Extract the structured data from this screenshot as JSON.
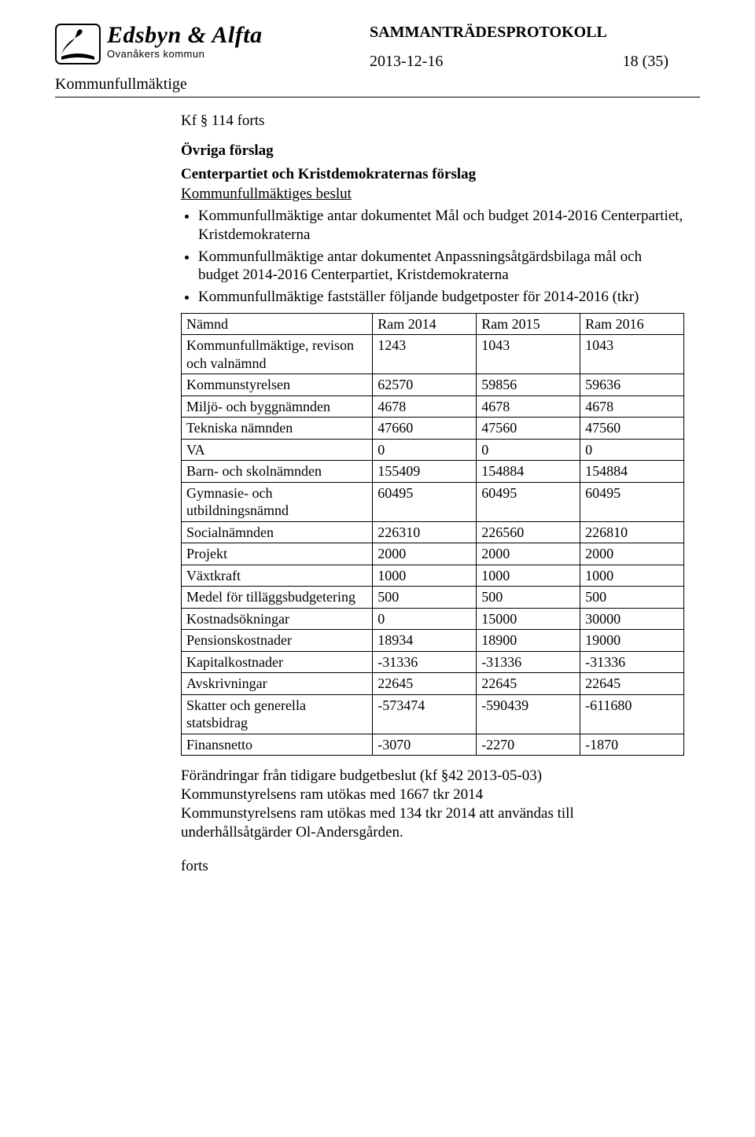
{
  "header": {
    "logo_main": "Edsbyn & Alfta",
    "logo_sub": "Ovanåkers kommun",
    "doc_title": "SAMMANTRÄDESPROTOKOLL",
    "date": "2013-12-16",
    "page_label": "18 (35)"
  },
  "kf_label": "Kommunfullmäktige",
  "content": {
    "kf_forts": "Kf § 114 forts",
    "h1": "Övriga förslag",
    "h2": "Centerpartiet och Kristdemokraternas förslag",
    "sub": "Kommunfullmäktiges beslut",
    "bullets": [
      "Kommunfullmäktige antar dokumentet Mål och budget 2014-2016 Centerpartiet, Kristdemokraterna",
      "Kommunfullmäktige antar dokumentet Anpassningsåtgärdsbilaga mål och budget 2014-2016 Centerpartiet, Kristdemokraterna",
      "Kommunfullmäktige fastställer följande budgetposter för 2014-2016 (tkr)"
    ],
    "footer_lines": [
      "Förändringar från tidigare budgetbeslut (kf §42 2013-05-03)",
      "Kommunstyrelsens ram utökas med 1667 tkr 2014",
      "Kommunstyrelsens ram utökas med 134 tkr 2014 att användas till underhållsåtgärder Ol-Andersgården."
    ],
    "forts": "forts"
  },
  "table": {
    "columns": [
      "Nämnd",
      "Ram 2014",
      "Ram 2015",
      "Ram 2016"
    ],
    "col_widths": [
      "38%",
      "20.6%",
      "20.6%",
      "20.6%"
    ],
    "border_color": "#000000",
    "font_size": 18,
    "rows": [
      [
        "Kommunfullmäktige, revison och valnämnd",
        "1243",
        "1043",
        "1043"
      ],
      [
        "Kommunstyrelsen",
        "62570",
        "59856",
        "59636"
      ],
      [
        "Miljö- och byggnämnden",
        "4678",
        "4678",
        "4678"
      ],
      [
        "Tekniska nämnden",
        "47660",
        "47560",
        "47560"
      ],
      [
        "VA",
        "0",
        "0",
        "0"
      ],
      [
        "Barn- och skolnämnden",
        "155409",
        "154884",
        "154884"
      ],
      [
        "Gymnasie- och utbildningsnämnd",
        "60495",
        "60495",
        "60495"
      ],
      [
        "Socialnämnden",
        "226310",
        "226560",
        "226810"
      ],
      [
        "Projekt",
        "2000",
        "2000",
        "2000"
      ],
      [
        "Växtkraft",
        "1000",
        "1000",
        "1000"
      ],
      [
        "Medel för tilläggsbudgetering",
        "500",
        "500",
        "500"
      ],
      [
        "Kostnadsökningar",
        "0",
        "15000",
        "30000"
      ],
      [
        "Pensionskostnader",
        "18934",
        "18900",
        "19000"
      ],
      [
        "Kapitalkostnader",
        "-31336",
        "-31336",
        "-31336"
      ],
      [
        "Avskrivningar",
        "22645",
        "22645",
        "22645"
      ],
      [
        "Skatter och generella statsbidrag",
        "-573474",
        "-590439",
        "-611680"
      ],
      [
        "Finansnetto",
        "-3070",
        "-2270",
        "-1870"
      ]
    ]
  }
}
